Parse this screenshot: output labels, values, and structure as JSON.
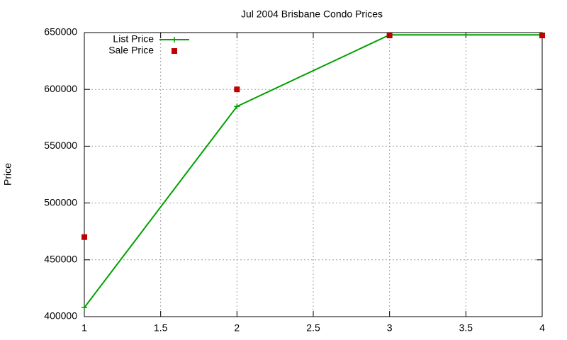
{
  "chart_data": {
    "type": "line",
    "title": "Jul 2004 Brisbane Condo Prices",
    "y_label": "Price",
    "x": [
      1,
      2,
      3,
      4
    ],
    "series": [
      {
        "name": "List Price",
        "color": "#00a000",
        "style": "linespoints",
        "values": [
          408000,
          585000,
          648000,
          648000
        ]
      },
      {
        "name": "Sale Price",
        "color": "#c00000",
        "style": "points",
        "values": [
          470000,
          600000,
          647500,
          647500
        ]
      }
    ],
    "xlim": [
      1,
      4
    ],
    "xticks": [
      1,
      1.5,
      2,
      2.5,
      3,
      3.5,
      4
    ],
    "ylim": [
      400000,
      650000
    ],
    "yticks": [
      400000,
      450000,
      500000,
      550000,
      600000,
      650000
    ],
    "grid": true,
    "legend": "top-left"
  }
}
